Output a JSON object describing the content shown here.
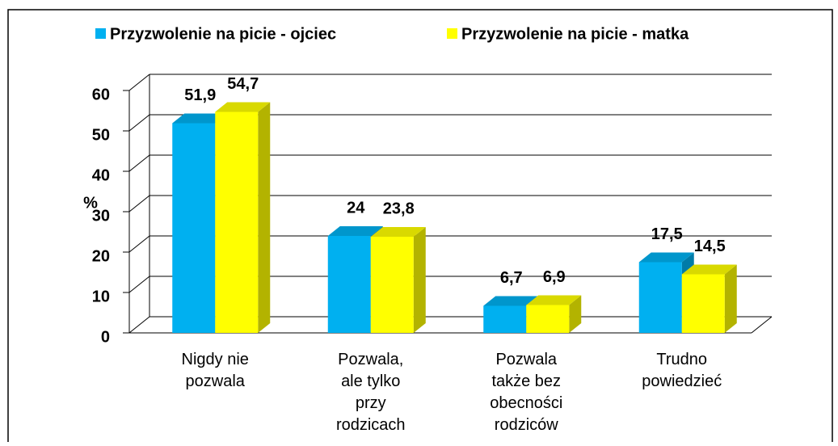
{
  "chart_data": {
    "type": "bar3d",
    "y_label": "%",
    "categories": [
      "Nigdy nie\npozwala",
      "Pozwala,\nale tylko\nprzy\nrodzicach",
      "Pozwala\ntakże bez\nobecności\nrodziców",
      "Trudno\npowiedzieć"
    ],
    "series": [
      {
        "name": "Przyzwolenie na picie - ojciec",
        "color": "#00b0f0",
        "values": [
          51.9,
          24,
          6.7,
          17.5
        ],
        "value_labels": [
          "51,9",
          "24",
          "6,7",
          "17,5"
        ]
      },
      {
        "name": "Przyzwolenie na picie - matka",
        "color": "#ffff00",
        "values": [
          54.7,
          23.8,
          6.9,
          14.5
        ],
        "value_labels": [
          "54,7",
          "23,8",
          "6,9",
          "14,5"
        ]
      }
    ],
    "ylim": [
      0,
      60
    ],
    "yticks": [
      0,
      10,
      20,
      30,
      40,
      50,
      60
    ],
    "grid": true
  }
}
